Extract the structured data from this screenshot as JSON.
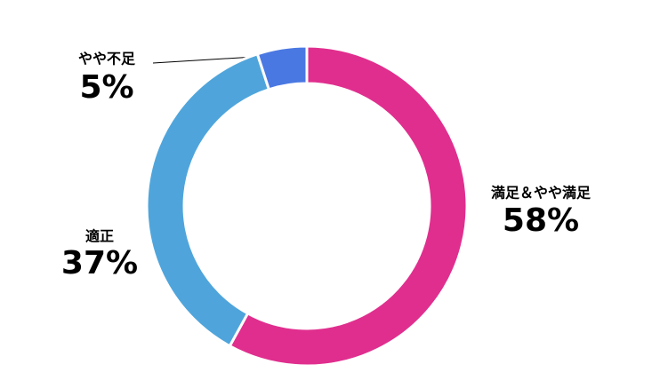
{
  "chart_data": {
    "type": "donut",
    "categories": [
      "満足＆やや満足",
      "適正",
      "やや不足"
    ],
    "values": [
      58,
      37,
      5
    ],
    "value_labels": [
      "58%",
      "37%",
      "5%"
    ],
    "colors": [
      "#e02e8e",
      "#4fa5db",
      "#4a78e2"
    ]
  }
}
